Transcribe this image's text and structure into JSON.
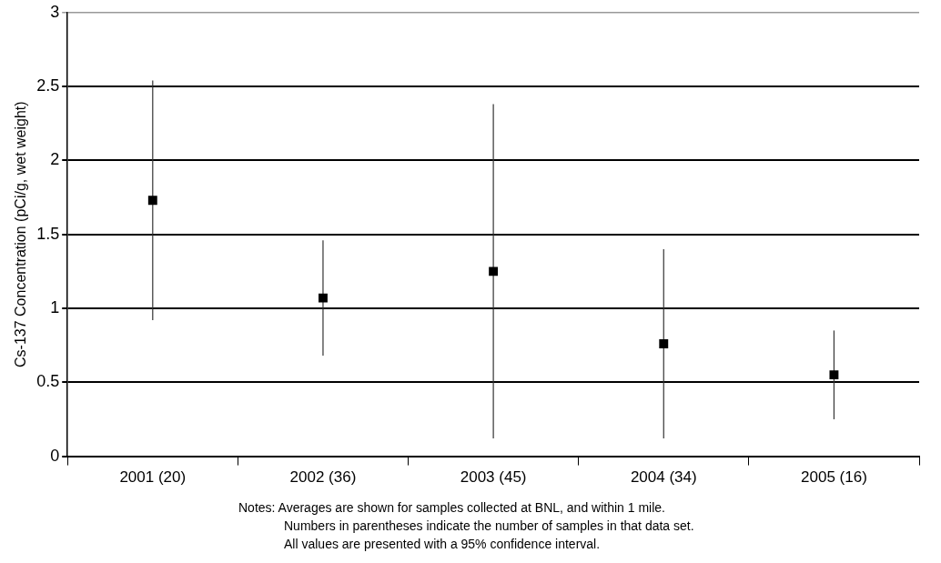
{
  "chart_data": {
    "type": "scatter",
    "ylabel": "Cs-137 Concentration (pCi/g, wet weight)",
    "categories": [
      "2001 (20)",
      "2002 (36)",
      "2003 (45)",
      "2004 (34)",
      "2005 (16)"
    ],
    "values": [
      1.73,
      1.07,
      1.25,
      0.76,
      0.55
    ],
    "errors": [
      [
        0.92,
        2.54
      ],
      [
        0.68,
        1.46
      ],
      [
        0.12,
        2.38
      ],
      [
        0.12,
        1.4
      ],
      [
        0.25,
        0.85
      ]
    ],
    "color": "#000000",
    "marker": "square",
    "ylim": [
      0,
      3
    ],
    "yticks": [
      0,
      0.5,
      1,
      1.5,
      2,
      2.5,
      3
    ],
    "grid": "y",
    "legend": false,
    "annotations": [
      "Notes:  Averages are shown for samples collected at BNL, and within 1 mile.",
      "Numbers in parentheses indicate the number of samples in that data set.",
      "All values are presented with a 95% confidence interval."
    ]
  }
}
